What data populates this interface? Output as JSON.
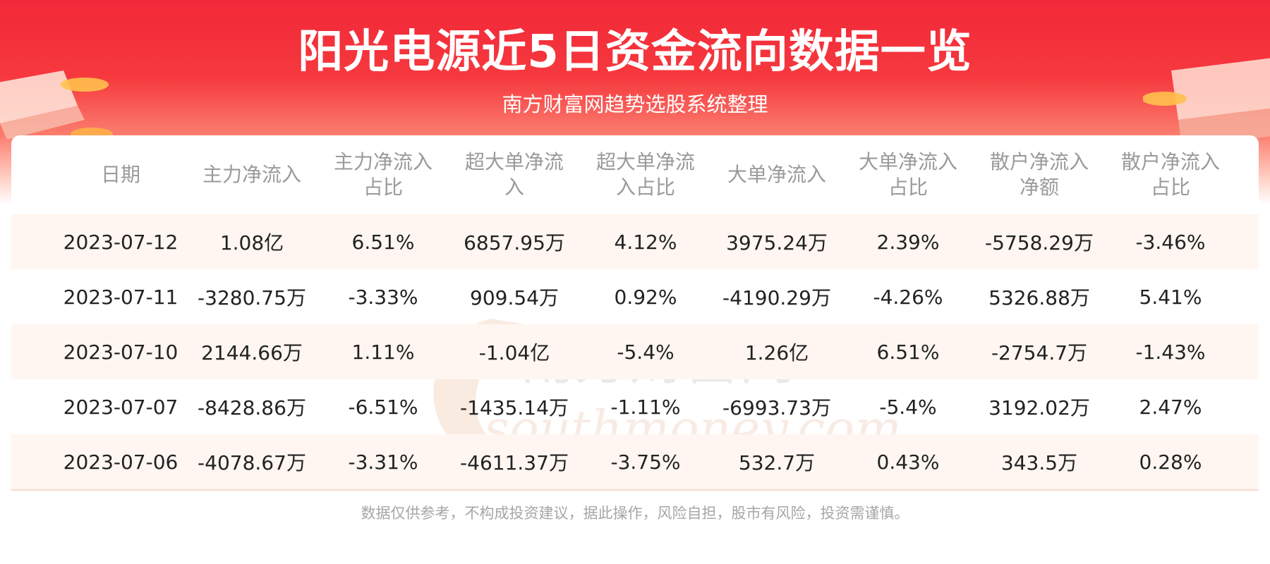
{
  "header": {
    "title": "阳光电源近5日资金流向数据一览",
    "subtitle": "南方财富网趋势选股系统整理"
  },
  "watermark": {
    "cn": "南方财富网",
    "en": "southmoney.com"
  },
  "table": {
    "columns": [
      "日期",
      "主力净流入",
      "主力净流入占比",
      "超大单净流入",
      "超大单净流入占比",
      "大单净流入",
      "大单净流入占比",
      "散户净流入净额",
      "散户净流入占比"
    ],
    "rows": [
      [
        "2023-07-12",
        "1.08亿",
        "6.51%",
        "6857.95万",
        "4.12%",
        "3975.24万",
        "2.39%",
        "-5758.29万",
        "-3.46%"
      ],
      [
        "2023-07-11",
        "-3280.75万",
        "-3.33%",
        "909.54万",
        "0.92%",
        "-4190.29万",
        "-4.26%",
        "5326.88万",
        "5.41%"
      ],
      [
        "2023-07-10",
        "2144.66万",
        "1.11%",
        "-1.04亿",
        "-5.4%",
        "1.26亿",
        "6.51%",
        "-2754.7万",
        "-1.43%"
      ],
      [
        "2023-07-07",
        "-8428.86万",
        "-6.51%",
        "-1435.14万",
        "-1.11%",
        "-6993.73万",
        "-5.4%",
        "3192.02万",
        "2.47%"
      ],
      [
        "2023-07-06",
        "-4078.67万",
        "-3.31%",
        "-4611.37万",
        "-3.75%",
        "532.7万",
        "0.43%",
        "343.5万",
        "0.28%"
      ]
    ]
  },
  "footer": {
    "disclaimer": "数据仅供参考，不构成投资建议，据此操作，风险自担，股市有风险，投资需谨慎。"
  },
  "colors": {
    "banner_red": "#f12838",
    "row_stripe": "#fff6f1",
    "header_text": "#9a9a9a",
    "body_text": "#222222"
  }
}
